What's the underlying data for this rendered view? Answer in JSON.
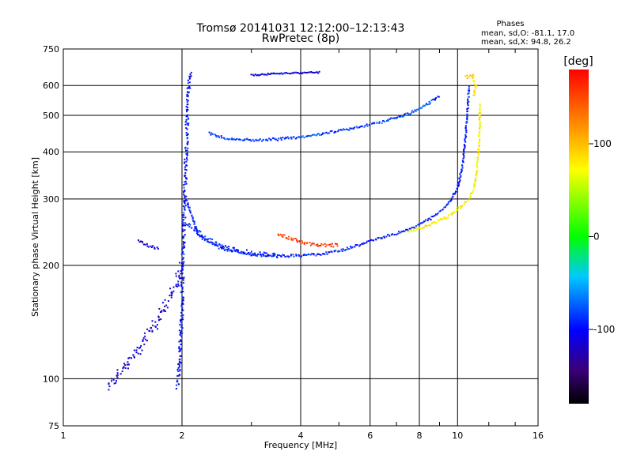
{
  "chart_data": {
    "type": "scatter",
    "title": "Tromsø 20141031 12:12:00–12:13:43",
    "subtitle": "RwPretec (8p)",
    "xlabel": "Frequency [MHz]",
    "ylabel": "Stationary phase Virtual Height [km]",
    "x_scale": "log",
    "y_scale": "log",
    "xlim": [
      1,
      16
    ],
    "ylim": [
      75,
      750
    ],
    "x_ticks": [
      1,
      2,
      4,
      6,
      8,
      10,
      16
    ],
    "x_tick_labels": [
      "1",
      "2",
      "4",
      "6",
      "8",
      "10",
      "16"
    ],
    "y_ticks": [
      75,
      100,
      200,
      300,
      400,
      500,
      600,
      750
    ],
    "y_tick_labels": [
      "75",
      "100",
      "200",
      "300",
      "400",
      "500",
      "600",
      "750"
    ],
    "grid": true,
    "annotation": {
      "heading": "Phases",
      "line1": "mean, sd,O: -81.1, 17.0",
      "line2": "mean, sd,X:  94.8, 26.2"
    },
    "colorbar": {
      "unit": "[deg]",
      "range": [
        -180,
        180
      ],
      "ticks": [
        100,
        0,
        -100
      ],
      "tick_labels": [
        "100",
        "0",
        "-100"
      ]
    },
    "traces": [
      {
        "x": [
          1.95,
          1.97,
          2.0,
          2.02,
          2.05,
          2.07,
          2.1
        ],
        "y": [
          95,
          110,
          150,
          250,
          400,
          550,
          650
        ],
        "phase": -100,
        "jitter": 0.035
      },
      {
        "x": [
          1.3,
          1.45,
          1.6,
          1.75,
          1.9,
          2.0
        ],
        "y": [
          95,
          110,
          125,
          145,
          170,
          200
        ],
        "phase": -115,
        "jitter": 0.06
      },
      {
        "x": [
          2.05,
          2.2,
          2.5,
          3.0,
          3.5,
          4.0,
          4.5,
          5.0,
          5.5,
          6.0,
          6.5,
          7.0,
          7.5,
          8.0,
          8.5,
          9.0,
          9.5,
          10.0,
          10.3,
          10.5,
          10.7
        ],
        "y": [
          300,
          240,
          222,
          214,
          212,
          212,
          214,
          218,
          225,
          232,
          238,
          243,
          249,
          256,
          265,
          276,
          292,
          320,
          370,
          450,
          600
        ],
        "phase": -95,
        "jitter": 0.015
      },
      {
        "x": [
          2.05,
          2.3,
          2.6,
          3.0,
          3.5
        ],
        "y": [
          260,
          235,
          222,
          215,
          212
        ],
        "phase": -90,
        "jitter": 0.03
      },
      {
        "x": [
          2.35,
          2.6,
          3.0,
          3.5,
          4.0,
          4.5,
          5.0,
          5.5,
          6.0,
          6.5,
          7.0,
          7.5,
          8.0,
          8.5,
          9.0
        ],
        "y": [
          448,
          433,
          430,
          432,
          438,
          446,
          455,
          463,
          472,
          482,
          492,
          505,
          520,
          540,
          565
        ],
        "phase": -85,
        "jitter": 0.015
      },
      {
        "x": [
          3.5,
          3.8,
          4.2,
          4.6,
          5.0
        ],
        "y": [
          242,
          235,
          228,
          226,
          226
        ],
        "phase": 160,
        "jitter": 0.02
      },
      {
        "x": [
          7.5,
          8.5,
          9.5,
          10.2,
          10.7,
          11.0,
          11.2,
          11.35,
          11.4
        ],
        "y": [
          245,
          256,
          270,
          286,
          300,
          320,
          360,
          430,
          540
        ],
        "phase": 75,
        "jitter": 0.015
      },
      {
        "x": [
          10.5,
          10.9,
          11.1,
          11.0
        ],
        "y": [
          630,
          640,
          600,
          560
        ],
        "phase": 90,
        "jitter": 0.02
      },
      {
        "x": [
          1.55,
          1.65,
          1.75
        ],
        "y": [
          232,
          225,
          221
        ],
        "phase": -115,
        "jitter": 0.015
      },
      {
        "x": [
          3.0,
          3.5,
          4.0,
          4.5
        ],
        "y": [
          640,
          645,
          648,
          650
        ],
        "phase": -110,
        "jitter": 0.01
      }
    ]
  }
}
